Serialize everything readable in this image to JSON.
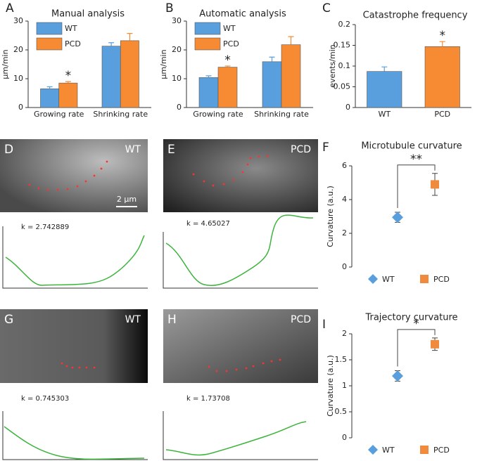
{
  "chart_data": [
    {
      "panel": "A",
      "type": "bar",
      "title": "Manual analysis",
      "y_label": "µm/min",
      "categories": [
        "Growing rate",
        "Shrinking rate"
      ],
      "series": [
        {
          "name": "WT",
          "color": "#5a9fdd",
          "values": [
            6.5,
            21.3
          ],
          "errors": [
            0.7,
            1.2
          ]
        },
        {
          "name": "PCD",
          "color": "#f68b33",
          "values": [
            8.5,
            23.2
          ],
          "errors": [
            0.5,
            2.5
          ],
          "significance": [
            "*",
            null
          ]
        }
      ],
      "ylim": [
        0,
        30
      ],
      "yticks": [
        0,
        10,
        20,
        30
      ]
    },
    {
      "panel": "B",
      "type": "bar",
      "title": "Automatic analysis",
      "y_label": "µm/min",
      "categories": [
        "Growing rate",
        "Shrinking rate"
      ],
      "series": [
        {
          "name": "WT",
          "color": "#5a9fdd",
          "values": [
            10.4,
            15.9
          ],
          "errors": [
            0.6,
            1.6
          ]
        },
        {
          "name": "PCD",
          "color": "#f68b33",
          "values": [
            14.0,
            21.8
          ],
          "errors": [
            0.4,
            2.8
          ],
          "significance": [
            "*",
            null
          ]
        }
      ],
      "ylim": [
        0,
        30
      ],
      "yticks": [
        0,
        10,
        20,
        30
      ]
    },
    {
      "panel": "C",
      "type": "bar",
      "title": "Catastrophe frequency",
      "y_label": "events/min",
      "categories": [
        "WT",
        "PCD"
      ],
      "series": [
        {
          "colors": [
            "#5a9fdd",
            "#f68b33"
          ],
          "values": [
            0.087,
            0.147
          ],
          "errors": [
            0.011,
            0.012
          ],
          "significance": [
            null,
            "*"
          ]
        }
      ],
      "ylim": [
        0,
        0.2
      ],
      "yticks": [
        0,
        0.05,
        0.1,
        0.15,
        0.2
      ]
    },
    {
      "panel": "F",
      "type": "point",
      "title": "Microtubule curvature",
      "y_label": "Curvature (a.u.)",
      "series": [
        {
          "name": "WT",
          "color": "#5a9fdd",
          "marker": "diamond",
          "values": [
            2.95
          ],
          "errors": [
            0.3
          ]
        },
        {
          "name": "PCD",
          "color": "#f08a3c",
          "marker": "square",
          "values": [
            4.9
          ],
          "errors": [
            0.65
          ]
        }
      ],
      "significance": "**",
      "ylim": [
        0,
        6
      ],
      "yticks": [
        0,
        2,
        4,
        6
      ]
    },
    {
      "panel": "I",
      "type": "point",
      "title": "Trajectory curvature",
      "y_label": "Curvature (a.u.)",
      "series": [
        {
          "name": "WT",
          "color": "#5a9fdd",
          "marker": "diamond",
          "values": [
            1.19
          ],
          "errors": [
            0.1
          ]
        },
        {
          "name": "PCD",
          "color": "#f08a3c",
          "marker": "square",
          "values": [
            1.8
          ],
          "errors": [
            0.12
          ]
        }
      ],
      "significance": "*",
      "ylim": [
        0,
        2
      ],
      "yticks": [
        0,
        0.5,
        1,
        1.5,
        2
      ]
    }
  ],
  "micrographs": [
    {
      "panel": "D",
      "label": "WT",
      "scale_bar": "2 µm",
      "k_label": "k = 2.742889"
    },
    {
      "panel": "E",
      "label": "PCD",
      "k_label": "k = 4.65027"
    },
    {
      "panel": "G",
      "label": "WT",
      "k_label": "k = 0.745303"
    },
    {
      "panel": "H",
      "label": "PCD",
      "k_label": "k = 1.73708"
    }
  ]
}
